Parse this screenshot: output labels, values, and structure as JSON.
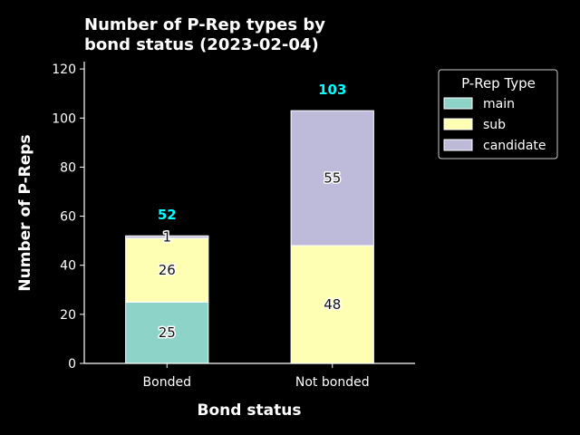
{
  "chart_data": {
    "type": "bar",
    "stacked": true,
    "title_lines": [
      "Number of P-Rep types by",
      "bond status (2023-02-04)"
    ],
    "xlabel": "Bond status",
    "ylabel": "Number of P-Reps",
    "categories": [
      "Bonded",
      "Not bonded"
    ],
    "series": [
      {
        "name": "main",
        "values": [
          25,
          0
        ],
        "color": "#8dd3c7"
      },
      {
        "name": "sub",
        "values": [
          26,
          48
        ],
        "color": "#ffffb3"
      },
      {
        "name": "candidate",
        "values": [
          1,
          55
        ],
        "color": "#bebada"
      }
    ],
    "totals": [
      52,
      103
    ],
    "ylim": [
      0,
      123
    ],
    "yticks": [
      0,
      20,
      40,
      60,
      80,
      100,
      120
    ],
    "legend": {
      "title": "P-Rep Type",
      "position": "upper right outside"
    },
    "grid": false,
    "colors": {
      "background": "#000000",
      "foreground": "#ffffff",
      "total_label": "#00ffff"
    }
  }
}
